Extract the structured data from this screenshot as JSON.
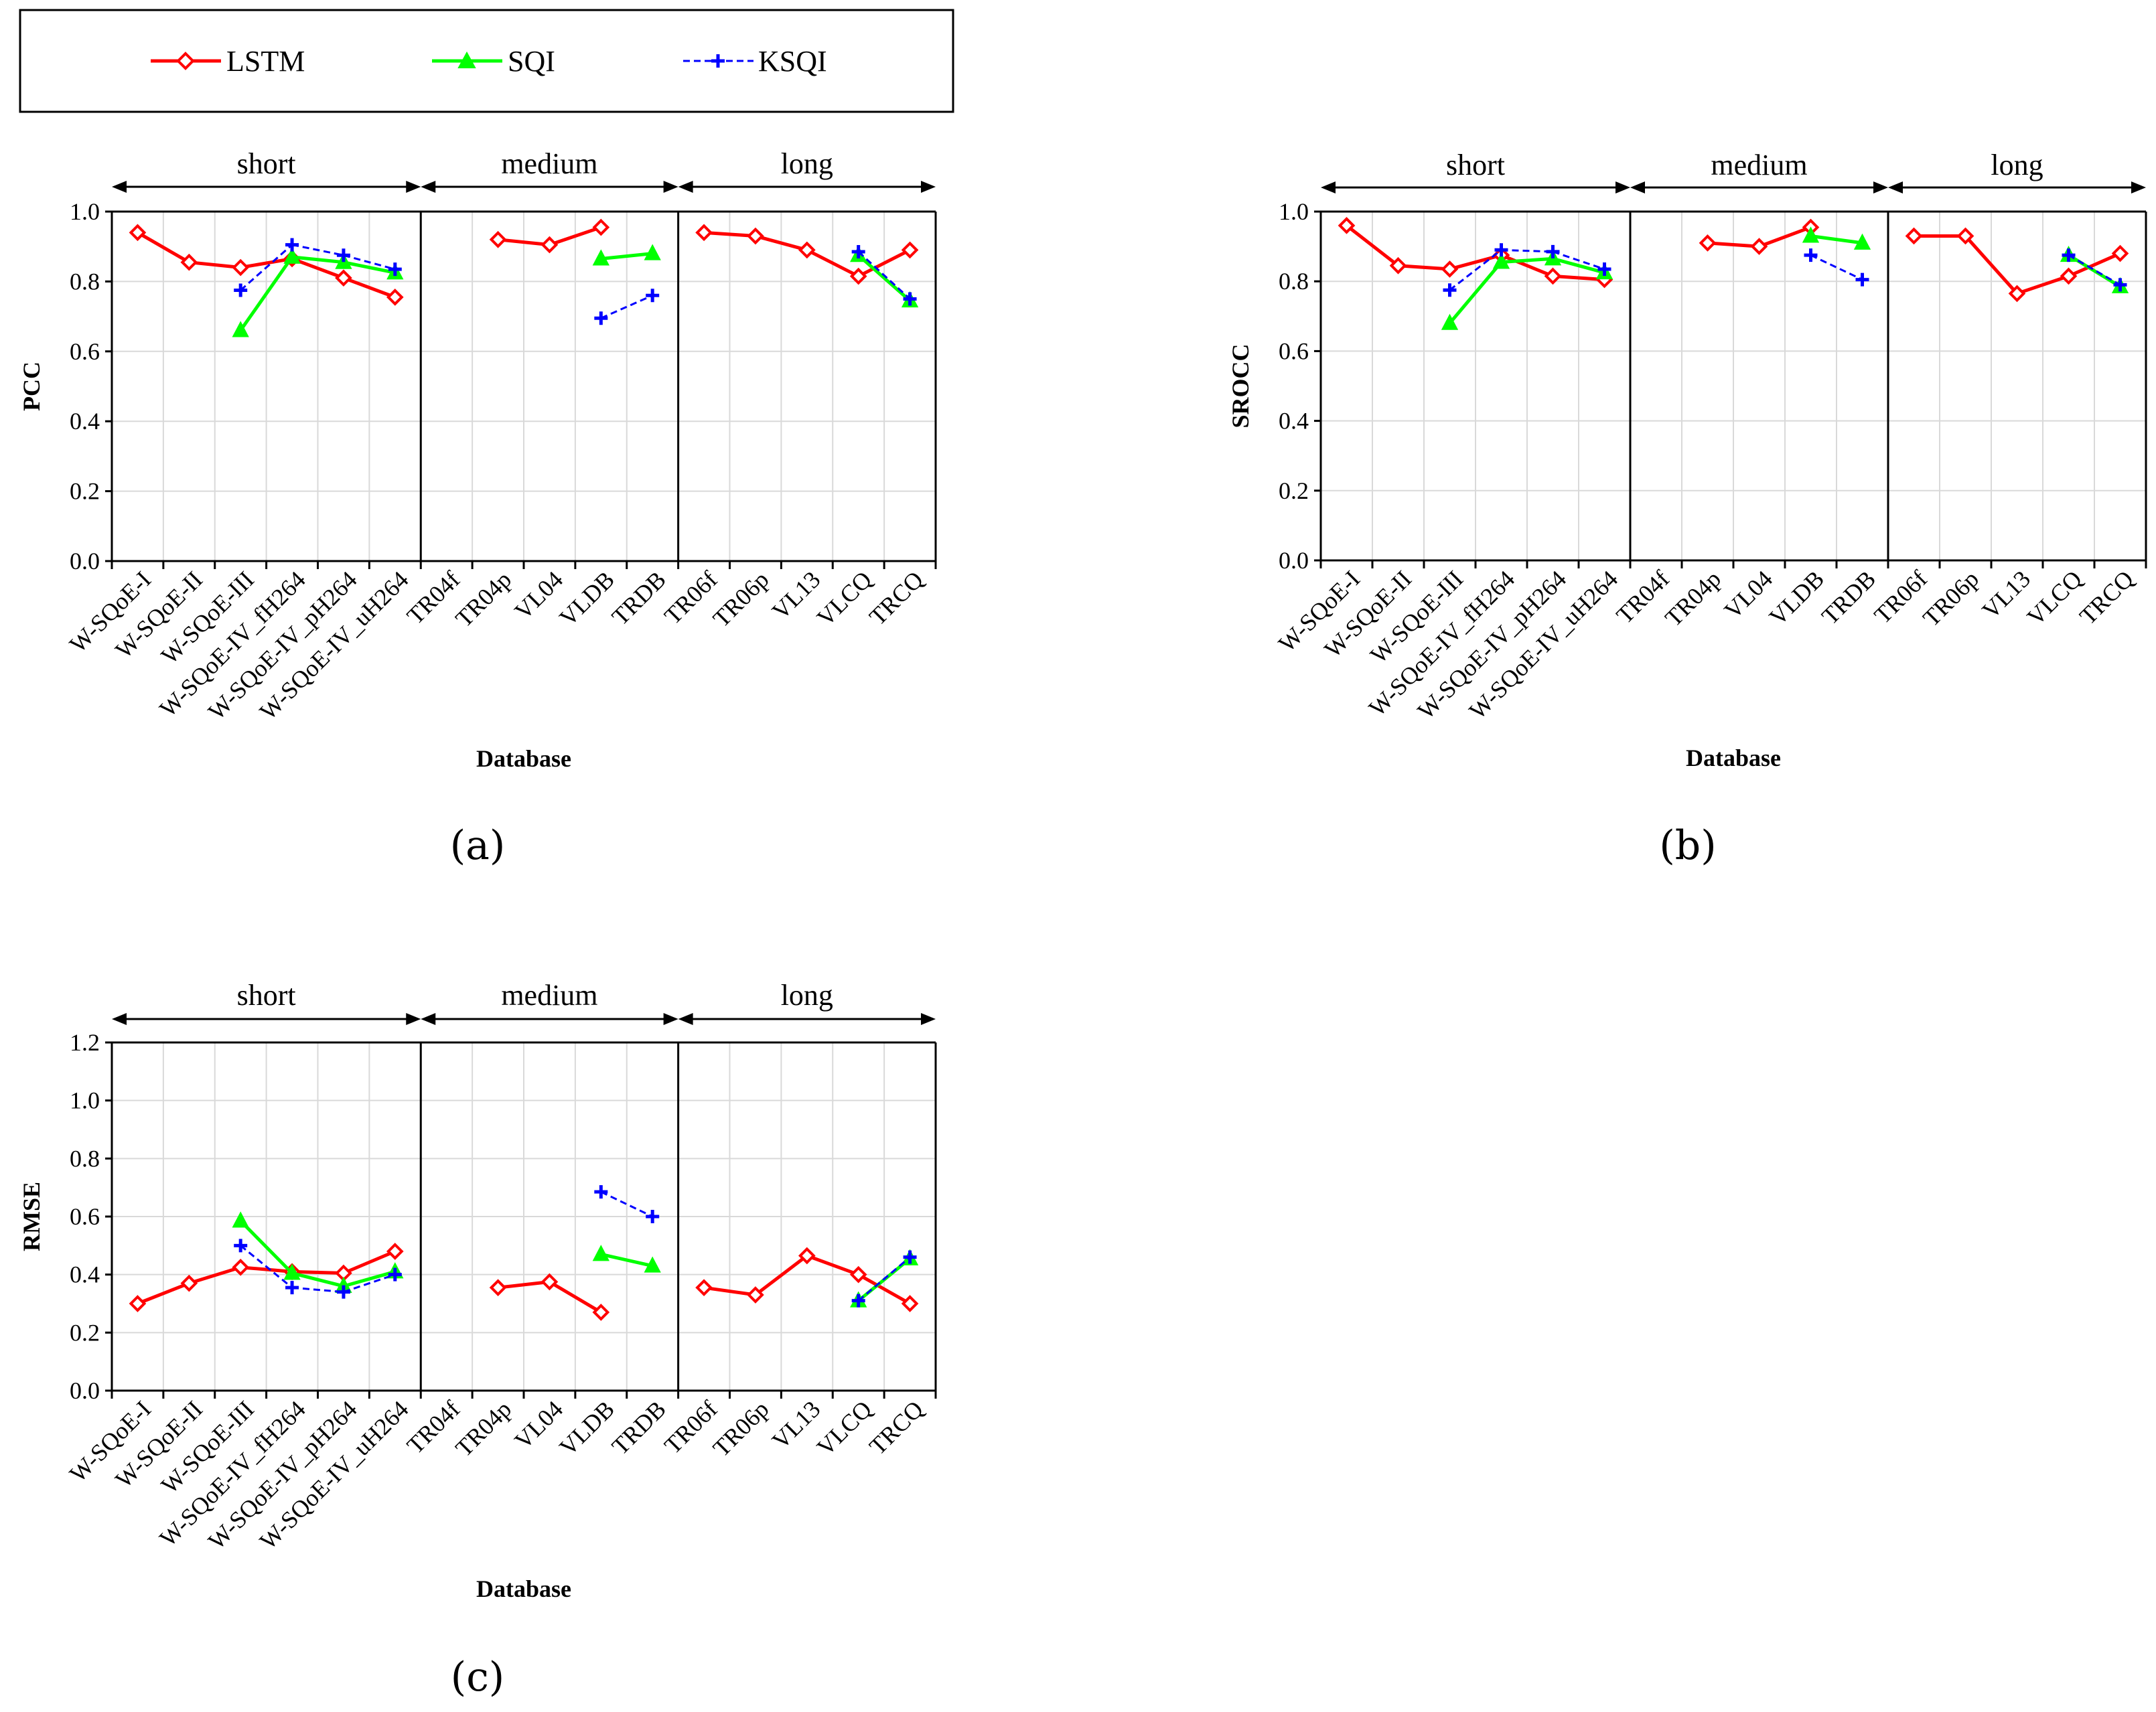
{
  "legend": {
    "entries": [
      {
        "name": "LSTM",
        "color": "#ff0000",
        "marker": "diamond-open",
        "dash": "solid"
      },
      {
        "name": "SQI",
        "color": "#00ff00",
        "marker": "triangle-filled",
        "dash": "solid"
      },
      {
        "name": "KSQI",
        "color": "#0000ff",
        "marker": "plus",
        "dash": "dashed"
      }
    ]
  },
  "chart_data": [
    {
      "type": "line",
      "panel_label": "(a)",
      "ylabel": "PCC",
      "xlabel": "Database",
      "ylim": [
        0,
        1.0
      ],
      "yticks": [
        "0.0",
        "0.2",
        "0.4",
        "0.6",
        "0.8",
        "1.0"
      ],
      "groups": [
        {
          "label": "short",
          "categories": [
            "W-SQoE-I",
            "W-SQoE-II",
            "W-SQoE-III",
            "W-SQoE-IV_fH264",
            "W-SQoE-IV_pH264",
            "W-SQoE-IV_uH264"
          ]
        },
        {
          "label": "medium",
          "categories": [
            "TR04f",
            "TR04p",
            "VL04",
            "VLDB",
            "TRDB"
          ]
        },
        {
          "label": "long",
          "categories": [
            "TR06f",
            "TR06p",
            "VL13",
            "VLCQ",
            "TRCQ"
          ]
        }
      ],
      "series": [
        {
          "name": "LSTM",
          "values": [
            0.94,
            0.855,
            0.84,
            0.865,
            0.81,
            0.755,
            null,
            0.92,
            0.905,
            0.955,
            null,
            0.94,
            0.93,
            0.89,
            0.815,
            0.89
          ]
        },
        {
          "name": "SQI",
          "values": [
            null,
            null,
            0.66,
            0.87,
            0.855,
            0.825,
            null,
            null,
            null,
            0.865,
            0.88,
            null,
            null,
            null,
            0.875,
            0.745
          ]
        },
        {
          "name": "KSQI",
          "values": [
            null,
            null,
            0.775,
            0.905,
            0.875,
            0.835,
            null,
            null,
            null,
            0.695,
            0.76,
            null,
            null,
            null,
            0.885,
            0.75
          ]
        }
      ]
    },
    {
      "type": "line",
      "panel_label": "(b)",
      "ylabel": "SROCC",
      "xlabel": "Database",
      "ylim": [
        0,
        1.0
      ],
      "yticks": [
        "0.0",
        "0.2",
        "0.4",
        "0.6",
        "0.8",
        "1.0"
      ],
      "groups": [
        {
          "label": "short",
          "categories": [
            "W-SQoE-I",
            "W-SQoE-II",
            "W-SQoE-III",
            "W-SQoE-IV_fH264",
            "W-SQoE-IV_pH264",
            "W-SQoE-IV_uH264"
          ]
        },
        {
          "label": "medium",
          "categories": [
            "TR04f",
            "TR04p",
            "VL04",
            "VLDB",
            "TRDB"
          ]
        },
        {
          "label": "long",
          "categories": [
            "TR06f",
            "TR06p",
            "VL13",
            "VLCQ",
            "TRCQ"
          ]
        }
      ],
      "series": [
        {
          "name": "LSTM",
          "values": [
            0.96,
            0.845,
            0.835,
            0.875,
            0.815,
            0.805,
            null,
            0.91,
            0.9,
            0.955,
            null,
            0.93,
            0.93,
            0.765,
            0.815,
            0.88
          ]
        },
        {
          "name": "SQI",
          "values": [
            null,
            null,
            0.68,
            0.855,
            0.865,
            0.825,
            null,
            null,
            null,
            0.93,
            0.91,
            null,
            null,
            null,
            0.875,
            0.785
          ]
        },
        {
          "name": "KSQI",
          "values": [
            null,
            null,
            0.775,
            0.89,
            0.885,
            0.835,
            null,
            null,
            null,
            0.875,
            0.805,
            null,
            null,
            null,
            0.875,
            0.79
          ]
        }
      ]
    },
    {
      "type": "line",
      "panel_label": "(c)",
      "ylabel": "RMSE",
      "xlabel": "Database",
      "ylim": [
        0,
        1.2
      ],
      "yticks": [
        "0.0",
        "0.2",
        "0.4",
        "0.6",
        "0.8",
        "1.0",
        "1.2"
      ],
      "groups": [
        {
          "label": "short",
          "categories": [
            "W-SQoE-I",
            "W-SQoE-II",
            "W-SQoE-III",
            "W-SQoE-IV_fH264",
            "W-SQoE-IV_pH264",
            "W-SQoE-IV_uH264"
          ]
        },
        {
          "label": "medium",
          "categories": [
            "TR04f",
            "TR04p",
            "VL04",
            "VLDB",
            "TRDB"
          ]
        },
        {
          "label": "long",
          "categories": [
            "TR06f",
            "TR06p",
            "VL13",
            "VLCQ",
            "TRCQ"
          ]
        }
      ],
      "series": [
        {
          "name": "LSTM",
          "values": [
            0.3,
            0.37,
            0.425,
            0.41,
            0.405,
            0.48,
            null,
            0.355,
            0.375,
            0.27,
            null,
            0.355,
            0.33,
            0.465,
            0.4,
            0.3
          ]
        },
        {
          "name": "SQI",
          "values": [
            null,
            null,
            0.585,
            0.405,
            0.36,
            0.41,
            null,
            null,
            null,
            0.47,
            0.43,
            null,
            null,
            null,
            0.31,
            0.455
          ]
        },
        {
          "name": "KSQI",
          "values": [
            null,
            null,
            0.5,
            0.355,
            0.34,
            0.4,
            null,
            null,
            null,
            0.685,
            0.6,
            null,
            null,
            null,
            0.31,
            0.46
          ]
        }
      ]
    }
  ]
}
